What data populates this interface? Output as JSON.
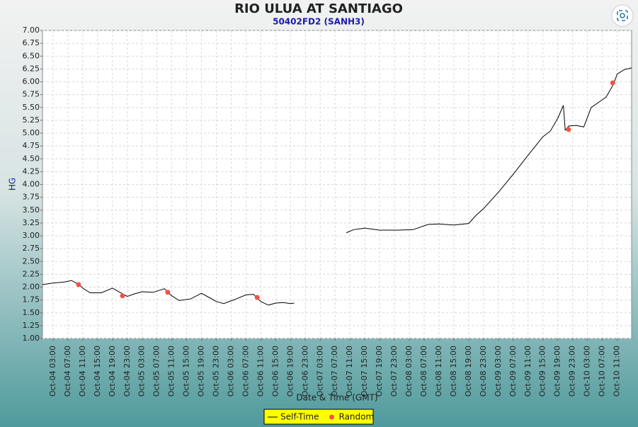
{
  "chart_data": {
    "type": "line",
    "title": "RIO ULUA AT SANTIAGO",
    "subtitle": "50402FD2 (SANH3)",
    "x_label": "Date & Time (GMT)",
    "y_label": "HG",
    "xlim": [
      "Oct-04 00:09",
      "Oct-10 14:54"
    ],
    "ylim": [
      1,
      7
    ],
    "grid": true,
    "legend": "bottom",
    "yticks": [
      {
        "value": 1,
        "label": "1.00"
      },
      {
        "value": 1.25,
        "label": "1.25"
      },
      {
        "value": 1.5,
        "label": "1.50"
      },
      {
        "value": 1.75,
        "label": "1.75"
      },
      {
        "value": 2,
        "label": "2.00"
      },
      {
        "value": 2.25,
        "label": "2.25"
      },
      {
        "value": 2.5,
        "label": "2.50"
      },
      {
        "value": 2.75,
        "label": "2.75"
      },
      {
        "value": 3,
        "label": "3.00"
      },
      {
        "value": 3.25,
        "label": "3.25"
      },
      {
        "value": 3.5,
        "label": "3.50"
      },
      {
        "value": 3.75,
        "label": "3.75"
      },
      {
        "value": 4,
        "label": "4.00"
      },
      {
        "value": 4.25,
        "label": "4.25"
      },
      {
        "value": 4.5,
        "label": "4.50"
      },
      {
        "value": 4.75,
        "label": "4.75"
      },
      {
        "value": 5,
        "label": "5.00"
      },
      {
        "value": 5.25,
        "label": "5.25"
      },
      {
        "value": 5.5,
        "label": "5.50"
      },
      {
        "value": 5.75,
        "label": "5.75"
      },
      {
        "value": 6,
        "label": "6.00"
      },
      {
        "value": 6.25,
        "label": "6.25"
      },
      {
        "value": 6.5,
        "label": "6.50"
      },
      {
        "value": 6.75,
        "label": "6.75"
      },
      {
        "value": 7,
        "label": "7.00"
      }
    ],
    "xticks": [
      "Oct-04 03:00",
      "Oct-04 07:00",
      "Oct-04 11:00",
      "Oct-04 15:00",
      "Oct-04 19:00",
      "Oct-04 23:00",
      "Oct-05 03:00",
      "Oct-05 07:00",
      "Oct-05 11:00",
      "Oct-05 15:00",
      "Oct-05 19:00",
      "Oct-05 23:00",
      "Oct-06 03:00",
      "Oct-06 07:00",
      "Oct-06 11:00",
      "Oct-06 15:00",
      "Oct-06 19:00",
      "Oct-06 23:00",
      "Oct-07 03:00",
      "Oct-07 07:00",
      "Oct-07 11:00",
      "Oct-07 15:00",
      "Oct-07 19:00",
      "Oct-07 23:00",
      "Oct-08 03:00",
      "Oct-08 07:00",
      "Oct-08 11:00",
      "Oct-08 15:00",
      "Oct-08 19:00",
      "Oct-08 23:00",
      "Oct-09 03:00",
      "Oct-09 07:00",
      "Oct-09 11:00",
      "Oct-09 15:00",
      "Oct-09 19:00",
      "Oct-09 23:00",
      "Oct-10 03:00",
      "Oct-10 07:00",
      "Oct-10 11:00"
    ],
    "series": [
      {
        "name": "Self-Time",
        "style": "line",
        "color": "#000000",
        "x": [
          "Oct-04 00:09",
          "Oct-04 03:00",
          "Oct-04 06:00",
          "Oct-04 08:00",
          "Oct-04 10:00",
          "Oct-04 11:00",
          "Oct-04 13:00",
          "Oct-04 16:00",
          "Oct-04 19:00",
          "Oct-04 21:00",
          "Oct-04 23:00",
          "Oct-05 01:00",
          "Oct-05 03:00",
          "Oct-05 06:00",
          "Oct-05 09:00",
          "Oct-05 11:00",
          "Oct-05 13:00",
          "Oct-05 16:00",
          "Oct-05 19:00",
          "Oct-05 21:00",
          "Oct-05 23:00",
          "Oct-06 01:00",
          "Oct-06 04:00",
          "Oct-06 07:00",
          "Oct-06 09:00",
          "Oct-06 11:00",
          "Oct-06 13:00",
          "Oct-06 15:00",
          "Oct-06 17:00",
          "Oct-06 19:00",
          "Oct-06 20:00",
          "Oct-07 03:00",
          "Oct-07 10:00",
          "Oct-07 12:00",
          "Oct-07 15:00",
          "Oct-07 19:00",
          "Oct-08 00:00",
          "Oct-08 04:00",
          "Oct-08 08:00",
          "Oct-08 11:00",
          "Oct-08 15:00",
          "Oct-08 19:00",
          "Oct-08 21:00",
          "Oct-08 23:00",
          "Oct-09 03:00",
          "Oct-09 07:00",
          "Oct-09 11:00",
          "Oct-09 15:00",
          "Oct-09 17:00",
          "Oct-09 19:00",
          "Oct-09 20:30",
          "Oct-09 21:00",
          "Oct-09 22:00",
          "Oct-10 00:00",
          "Oct-10 02:00",
          "Oct-10 04:00",
          "Oct-10 07:00",
          "Oct-10 08:00",
          "Oct-10 10:00",
          "Oct-10 11:00",
          "Oct-10 13:00",
          "Oct-10 14:54"
        ],
        "values": [
          2.05,
          2.08,
          2.1,
          2.13,
          2.05,
          1.98,
          1.89,
          1.89,
          1.98,
          1.9,
          1.82,
          1.87,
          1.91,
          1.9,
          1.97,
          1.83,
          1.74,
          1.77,
          1.88,
          1.8,
          1.72,
          1.68,
          1.76,
          1.85,
          1.86,
          1.72,
          1.65,
          1.69,
          1.7,
          1.68,
          1.69,
          null,
          3.06,
          3.12,
          3.15,
          3.11,
          3.11,
          3.12,
          3.22,
          3.23,
          3.21,
          3.24,
          3.4,
          3.53,
          3.85,
          4.2,
          4.57,
          4.93,
          5.04,
          5.29,
          5.54,
          5.06,
          5.14,
          5.15,
          5.12,
          5.5,
          5.65,
          5.7,
          5.95,
          6.15,
          6.24,
          6.27
        ]
      },
      {
        "name": "Random",
        "style": "points",
        "color": "#f0524a",
        "x": [
          "Oct-04 09:52",
          "Oct-04 21:42",
          "Oct-05 09:54",
          "Oct-06 10:00",
          "Oct-09 21:54",
          "Oct-10 09:48"
        ],
        "values": [
          2.05,
          1.83,
          1.9,
          1.8,
          5.07,
          5.98
        ]
      }
    ]
  }
}
